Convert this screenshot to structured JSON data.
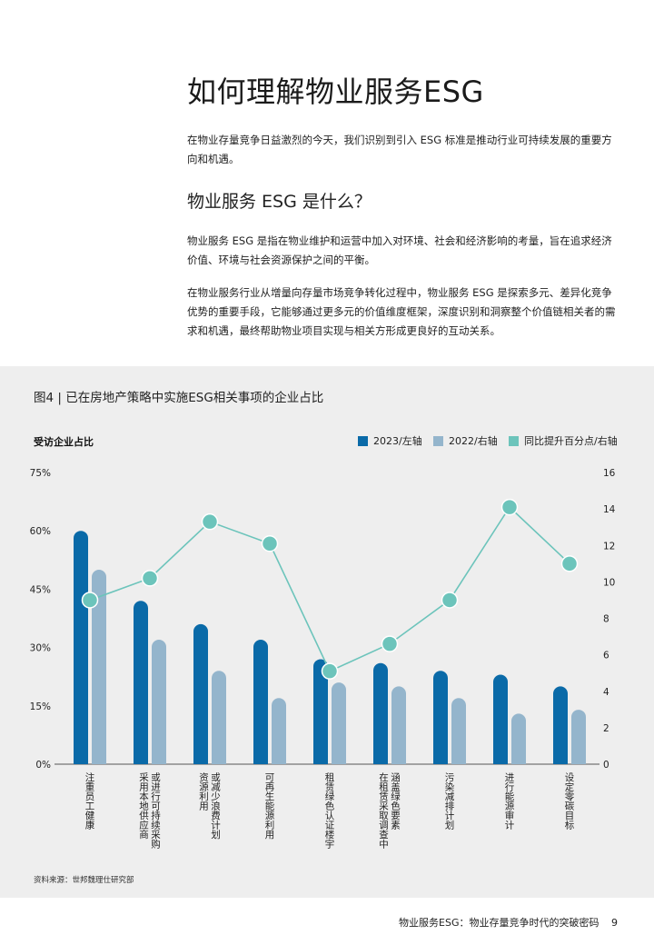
{
  "page": {
    "title": "如何理解物业服务ESG",
    "intro": "在物业存量竞争日益激烈的今天，我们识别到引入 ESG 标准是推动行业可持续发展的重要方向和机遇。",
    "subheading": "物业服务 ESG 是什么？",
    "para1": "物业服务 ESG 是指在物业维护和运营中加入对环境、社会和经济影响的考量，旨在追求经济价值、环境与社会资源保护之间的平衡。",
    "para2": "在物业服务行业从增量向存量市场竞争转化过程中，物业服务 ESG 是探索多元、差异化竞争优势的重要手段，它能够通过更多元的价值维度框架，深度识别和洞察整个价值链相关者的需求和机遇，最终帮助物业项目实现与相关方形成更良好的互动关系。"
  },
  "figure": {
    "title": "图4 | 已在房地产策略中实施ESG相关事项的企业占比",
    "left_axis_label": "受访企业占比",
    "source": "资料来源：世邦魏理仕研究部"
  },
  "footer": {
    "text": "物业服务ESG：物业存量竞争时代的突破密码",
    "page_number": "9"
  },
  "colors": {
    "series_2023": "#0a6aa8",
    "series_2022": "#94b5cc",
    "series_delta": "#6cc4bb",
    "panel_bg": "#eeeeee"
  },
  "chart_data": {
    "type": "bar",
    "categories": [
      "注重员工健康",
      "采用本地供应商或进行可持续采购",
      "资源利用或减少浪费计划",
      "可再生能源利用",
      "租赁绿色认证楼宇",
      "在租赁采取调查中涵盖绿色要素",
      "污染减排计划",
      "进行能源审计",
      "设定零碳目标"
    ],
    "category_lines": [
      [
        "注重员工健康"
      ],
      [
        "采用本地供应商",
        "或进行可持续采购"
      ],
      [
        "资源利用",
        "或减少浪费计划"
      ],
      [
        "可再生能源利用"
      ],
      [
        "租赁绿色认证楼宇"
      ],
      [
        "在租赁采取调查中",
        "涵盖绿色要素"
      ],
      [
        "污染减排计划"
      ],
      [
        "进行能源审计"
      ],
      [
        "设定零碳目标"
      ]
    ],
    "series": [
      {
        "name": "2023/左轴",
        "axis": "left",
        "kind": "bar",
        "values": [
          60,
          42,
          36,
          32,
          27,
          26,
          24,
          23,
          20
        ]
      },
      {
        "name": "2022/右轴",
        "axis": "left",
        "kind": "bar",
        "values": [
          50,
          32,
          24,
          17,
          21,
          20,
          17,
          13,
          14
        ]
      },
      {
        "name": "同比提升百分点/右轴",
        "axis": "right",
        "kind": "line",
        "values": [
          9,
          10.2,
          13.3,
          12.1,
          5.1,
          6.6,
          9,
          14.1,
          11
        ]
      }
    ],
    "left_axis": {
      "ticks": [
        "0%",
        "15%",
        "30%",
        "45%",
        "60%",
        "75%"
      ],
      "range": [
        0,
        75
      ]
    },
    "right_axis": {
      "ticks": [
        "0",
        "2",
        "4",
        "6",
        "8",
        "10",
        "12",
        "14",
        "16"
      ],
      "range": [
        0,
        16
      ]
    },
    "legend_position": "top-right",
    "grid": false
  }
}
